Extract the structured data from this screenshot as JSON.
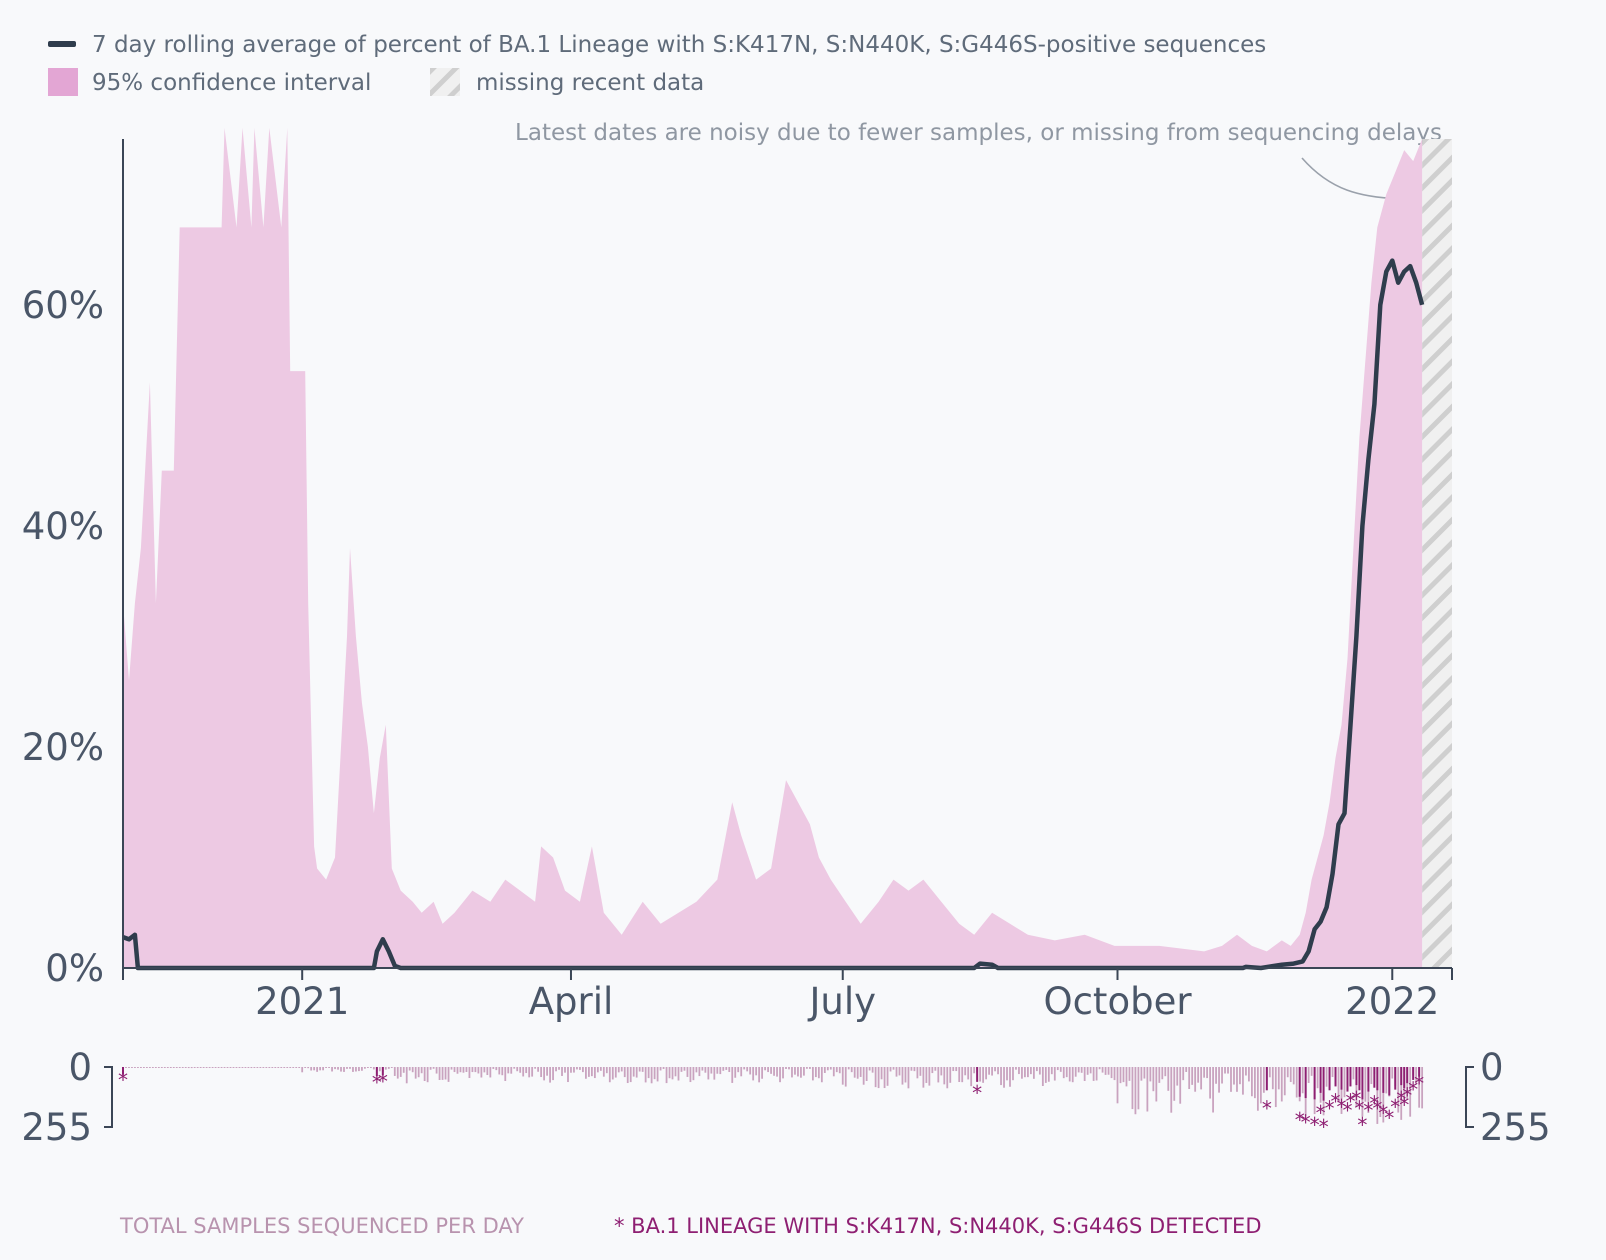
{
  "legend": {
    "line_label": "7 day rolling average of percent of BA.1 Lineage with S:K417N, S:N440K, S:G446S-positive sequences",
    "ci_label": "95% confidence interval",
    "missing_label": "missing recent data"
  },
  "annotation": "Latest dates are noisy due to fewer samples, or missing from sequencing delays",
  "footer": {
    "total_label": "TOTAL SAMPLES SEQUENCED PER DAY",
    "detect_label": "* BA.1 LINEAGE WITH S:K417N, S:N440K, S:G446S DETECTED"
  },
  "colors": {
    "line": "#2f3d4d",
    "ci": "#edc9e3",
    "ci_legend": "#e3a6d4",
    "bars_total": "#c9a3bf",
    "bars_detect": "#8e1f72",
    "axis": "#3b4656",
    "missing_hatch": "#cfcfcf"
  },
  "chart_data": {
    "type": "area",
    "x_unit": "date",
    "xlim": [
      "2020-11-02",
      "2022-01-21"
    ],
    "ylim": [
      0,
      75
    ],
    "y_ticks": [
      {
        "value": 0,
        "label": "0%"
      },
      {
        "value": 20,
        "label": "20%"
      },
      {
        "value": 40,
        "label": "40%"
      },
      {
        "value": 60,
        "label": "60%"
      }
    ],
    "x_ticks": [
      {
        "date": "2021-01-01",
        "label": "2021"
      },
      {
        "date": "2021-04-01",
        "label": "April"
      },
      {
        "date": "2021-07-01",
        "label": "July"
      },
      {
        "date": "2021-10-01",
        "label": "October"
      },
      {
        "date": "2022-01-01",
        "label": "2022"
      }
    ],
    "missing_range": [
      "2022-01-11",
      "2022-01-21"
    ],
    "ci_upper": [
      [
        "2020-11-02",
        33
      ],
      [
        "2020-11-04",
        26
      ],
      [
        "2020-11-06",
        33
      ],
      [
        "2020-11-08",
        38
      ],
      [
        "2020-11-11",
        53
      ],
      [
        "2020-11-13",
        33
      ],
      [
        "2020-11-15",
        45
      ],
      [
        "2020-11-19",
        45
      ],
      [
        "2020-11-21",
        67
      ],
      [
        "2020-12-05",
        67
      ],
      [
        "2020-12-06",
        76
      ],
      [
        "2020-12-10",
        67
      ],
      [
        "2020-12-12",
        76
      ],
      [
        "2020-12-15",
        67
      ],
      [
        "2020-12-16",
        76
      ],
      [
        "2020-12-19",
        67
      ],
      [
        "2020-12-21",
        76
      ],
      [
        "2020-12-25",
        67
      ],
      [
        "2020-12-27",
        76
      ],
      [
        "2020-12-28",
        54
      ],
      [
        "2021-01-02",
        54
      ],
      [
        "2021-01-03",
        33
      ],
      [
        "2021-01-05",
        11
      ],
      [
        "2021-01-06",
        9
      ],
      [
        "2021-01-09",
        8
      ],
      [
        "2021-01-12",
        10
      ],
      [
        "2021-01-15",
        25
      ],
      [
        "2021-01-16",
        30
      ],
      [
        "2021-01-17",
        38
      ],
      [
        "2021-01-19",
        30
      ],
      [
        "2021-01-21",
        24
      ],
      [
        "2021-01-23",
        20
      ],
      [
        "2021-01-25",
        14
      ],
      [
        "2021-01-27",
        19
      ],
      [
        "2021-01-29",
        22
      ],
      [
        "2021-01-31",
        9
      ],
      [
        "2021-02-03",
        7
      ],
      [
        "2021-02-07",
        6
      ],
      [
        "2021-02-10",
        5
      ],
      [
        "2021-02-14",
        6
      ],
      [
        "2021-02-17",
        4
      ],
      [
        "2021-02-21",
        5
      ],
      [
        "2021-02-27",
        7
      ],
      [
        "2021-03-05",
        6
      ],
      [
        "2021-03-10",
        8
      ],
      [
        "2021-03-15",
        7
      ],
      [
        "2021-03-20",
        6
      ],
      [
        "2021-03-22",
        11
      ],
      [
        "2021-03-26",
        10
      ],
      [
        "2021-03-30",
        7
      ],
      [
        "2021-04-04",
        6
      ],
      [
        "2021-04-08",
        11
      ],
      [
        "2021-04-12",
        5
      ],
      [
        "2021-04-18",
        3
      ],
      [
        "2021-04-25",
        6
      ],
      [
        "2021-05-01",
        4
      ],
      [
        "2021-05-07",
        5
      ],
      [
        "2021-05-13",
        6
      ],
      [
        "2021-05-20",
        8
      ],
      [
        "2021-05-25",
        15
      ],
      [
        "2021-05-28",
        12
      ],
      [
        "2021-06-02",
        8
      ],
      [
        "2021-06-07",
        9
      ],
      [
        "2021-06-12",
        17
      ],
      [
        "2021-06-16",
        15
      ],
      [
        "2021-06-20",
        13
      ],
      [
        "2021-06-23",
        10
      ],
      [
        "2021-06-27",
        8
      ],
      [
        "2021-07-02",
        6
      ],
      [
        "2021-07-07",
        4
      ],
      [
        "2021-07-13",
        6
      ],
      [
        "2021-07-18",
        8
      ],
      [
        "2021-07-23",
        7
      ],
      [
        "2021-07-28",
        8
      ],
      [
        "2021-08-03",
        6
      ],
      [
        "2021-08-09",
        4
      ],
      [
        "2021-08-14",
        3
      ],
      [
        "2021-08-20",
        5
      ],
      [
        "2021-08-26",
        4
      ],
      [
        "2021-09-01",
        3
      ],
      [
        "2021-09-10",
        2.5
      ],
      [
        "2021-09-20",
        3
      ],
      [
        "2021-09-30",
        2
      ],
      [
        "2021-10-15",
        2
      ],
      [
        "2021-10-30",
        1.5
      ],
      [
        "2021-11-05",
        2
      ],
      [
        "2021-11-10",
        3
      ],
      [
        "2021-11-15",
        2
      ],
      [
        "2021-11-20",
        1.5
      ],
      [
        "2021-11-25",
        2.5
      ],
      [
        "2021-11-28",
        2
      ],
      [
        "2021-12-01",
        3
      ],
      [
        "2021-12-03",
        5
      ],
      [
        "2021-12-05",
        8
      ],
      [
        "2021-12-07",
        10
      ],
      [
        "2021-12-09",
        12
      ],
      [
        "2021-12-11",
        15
      ],
      [
        "2021-12-13",
        19
      ],
      [
        "2021-12-15",
        22
      ],
      [
        "2021-12-17",
        28
      ],
      [
        "2021-12-19",
        38
      ],
      [
        "2021-12-21",
        48
      ],
      [
        "2021-12-23",
        55
      ],
      [
        "2021-12-25",
        62
      ],
      [
        "2021-12-27",
        67
      ],
      [
        "2021-12-30",
        70
      ],
      [
        "2022-01-02",
        72
      ],
      [
        "2022-01-05",
        74
      ],
      [
        "2022-01-08",
        73
      ],
      [
        "2022-01-11",
        75
      ]
    ],
    "series": [
      {
        "name": "7 day rolling average of percent of BA.1 Lineage with S:K417N, S:N440K, S:G446S-positive sequences",
        "points": [
          [
            "2020-11-02",
            2.8
          ],
          [
            "2020-11-04",
            2.6
          ],
          [
            "2020-11-06",
            3.0
          ],
          [
            "2020-11-07",
            0
          ],
          [
            "2021-01-25",
            0
          ],
          [
            "2021-01-26",
            1.5
          ],
          [
            "2021-01-28",
            2.6
          ],
          [
            "2021-01-30",
            1.5
          ],
          [
            "2021-02-01",
            0.2
          ],
          [
            "2021-02-03",
            0
          ],
          [
            "2021-08-14",
            0
          ],
          [
            "2021-08-16",
            0.4
          ],
          [
            "2021-08-20",
            0.3
          ],
          [
            "2021-08-22",
            0
          ],
          [
            "2021-11-12",
            0
          ],
          [
            "2021-11-13",
            0.1
          ],
          [
            "2021-11-18",
            0
          ],
          [
            "2021-11-25",
            0.3
          ],
          [
            "2021-11-29",
            0.4
          ],
          [
            "2021-12-02",
            0.6
          ],
          [
            "2021-12-04",
            1.5
          ],
          [
            "2021-12-06",
            3.5
          ],
          [
            "2021-12-08",
            4.2
          ],
          [
            "2021-12-10",
            5.5
          ],
          [
            "2021-12-12",
            8.5
          ],
          [
            "2021-12-14",
            13
          ],
          [
            "2021-12-16",
            14
          ],
          [
            "2021-12-18",
            22
          ],
          [
            "2021-12-20",
            30
          ],
          [
            "2021-12-22",
            40
          ],
          [
            "2021-12-24",
            46
          ],
          [
            "2021-12-26",
            51
          ],
          [
            "2021-12-28",
            60
          ],
          [
            "2021-12-30",
            63
          ],
          [
            "2022-01-01",
            64
          ],
          [
            "2022-01-03",
            62
          ],
          [
            "2022-01-05",
            63
          ],
          [
            "2022-01-07",
            63.5
          ],
          [
            "2022-01-09",
            62
          ],
          [
            "2022-01-11",
            60
          ]
        ]
      }
    ],
    "samples": {
      "count_ticks": [
        0,
        255
      ],
      "daily_counts_by_segment": [
        {
          "from": "2020-11-02",
          "to": "2020-12-31",
          "typical": 3
        },
        {
          "from": "2021-01-01",
          "to": "2021-01-31",
          "typical": 15
        },
        {
          "from": "2021-02-01",
          "to": "2021-06-30",
          "typical": 45
        },
        {
          "from": "2021-07-01",
          "to": "2021-09-30",
          "typical": 60
        },
        {
          "from": "2021-10-01",
          "to": "2021-11-30",
          "typical": 130
        },
        {
          "from": "2021-12-01",
          "to": "2022-01-11",
          "typical": 160
        }
      ],
      "detections": [
        [
          "2020-11-02",
          60
        ],
        [
          "2021-01-26",
          70
        ],
        [
          "2021-01-28",
          65
        ],
        [
          "2021-08-15",
          115
        ],
        [
          "2021-11-20",
          180
        ],
        [
          "2021-12-01",
          230
        ],
        [
          "2021-12-03",
          240
        ],
        [
          "2021-12-06",
          250
        ],
        [
          "2021-12-08",
          200
        ],
        [
          "2021-12-09",
          260
        ],
        [
          "2021-12-11",
          180
        ],
        [
          "2021-12-13",
          150
        ],
        [
          "2021-12-15",
          175
        ],
        [
          "2021-12-17",
          190
        ],
        [
          "2021-12-18",
          150
        ],
        [
          "2021-12-20",
          140
        ],
        [
          "2021-12-21",
          180
        ],
        [
          "2021-12-22",
          250
        ],
        [
          "2021-12-24",
          190
        ],
        [
          "2021-12-26",
          160
        ],
        [
          "2021-12-27",
          180
        ],
        [
          "2021-12-29",
          200
        ],
        [
          "2021-12-31",
          220
        ],
        [
          "2022-01-02",
          175
        ],
        [
          "2022-01-04",
          140
        ],
        [
          "2022-01-05",
          165
        ],
        [
          "2022-01-06",
          125
        ],
        [
          "2022-01-08",
          100
        ],
        [
          "2022-01-10",
          75
        ]
      ]
    }
  }
}
